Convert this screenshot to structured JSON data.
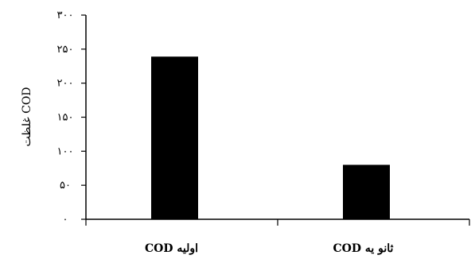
{
  "chart_data": {
    "type": "bar",
    "categories": [
      "COD اولیه",
      "COD ثانو یه"
    ],
    "values": [
      239,
      80
    ],
    "ylabel": "غلظت COD",
    "ylim": [
      0,
      300
    ],
    "yticks": [
      0,
      50,
      100,
      150,
      200,
      250,
      300
    ],
    "ytick_labels": [
      "۰",
      "۵۰",
      "۱۰۰",
      "۱۵۰",
      "۲۰۰",
      "۲۵۰",
      "۳۰۰"
    ],
    "bar_color": "#000000",
    "grid": false
  }
}
